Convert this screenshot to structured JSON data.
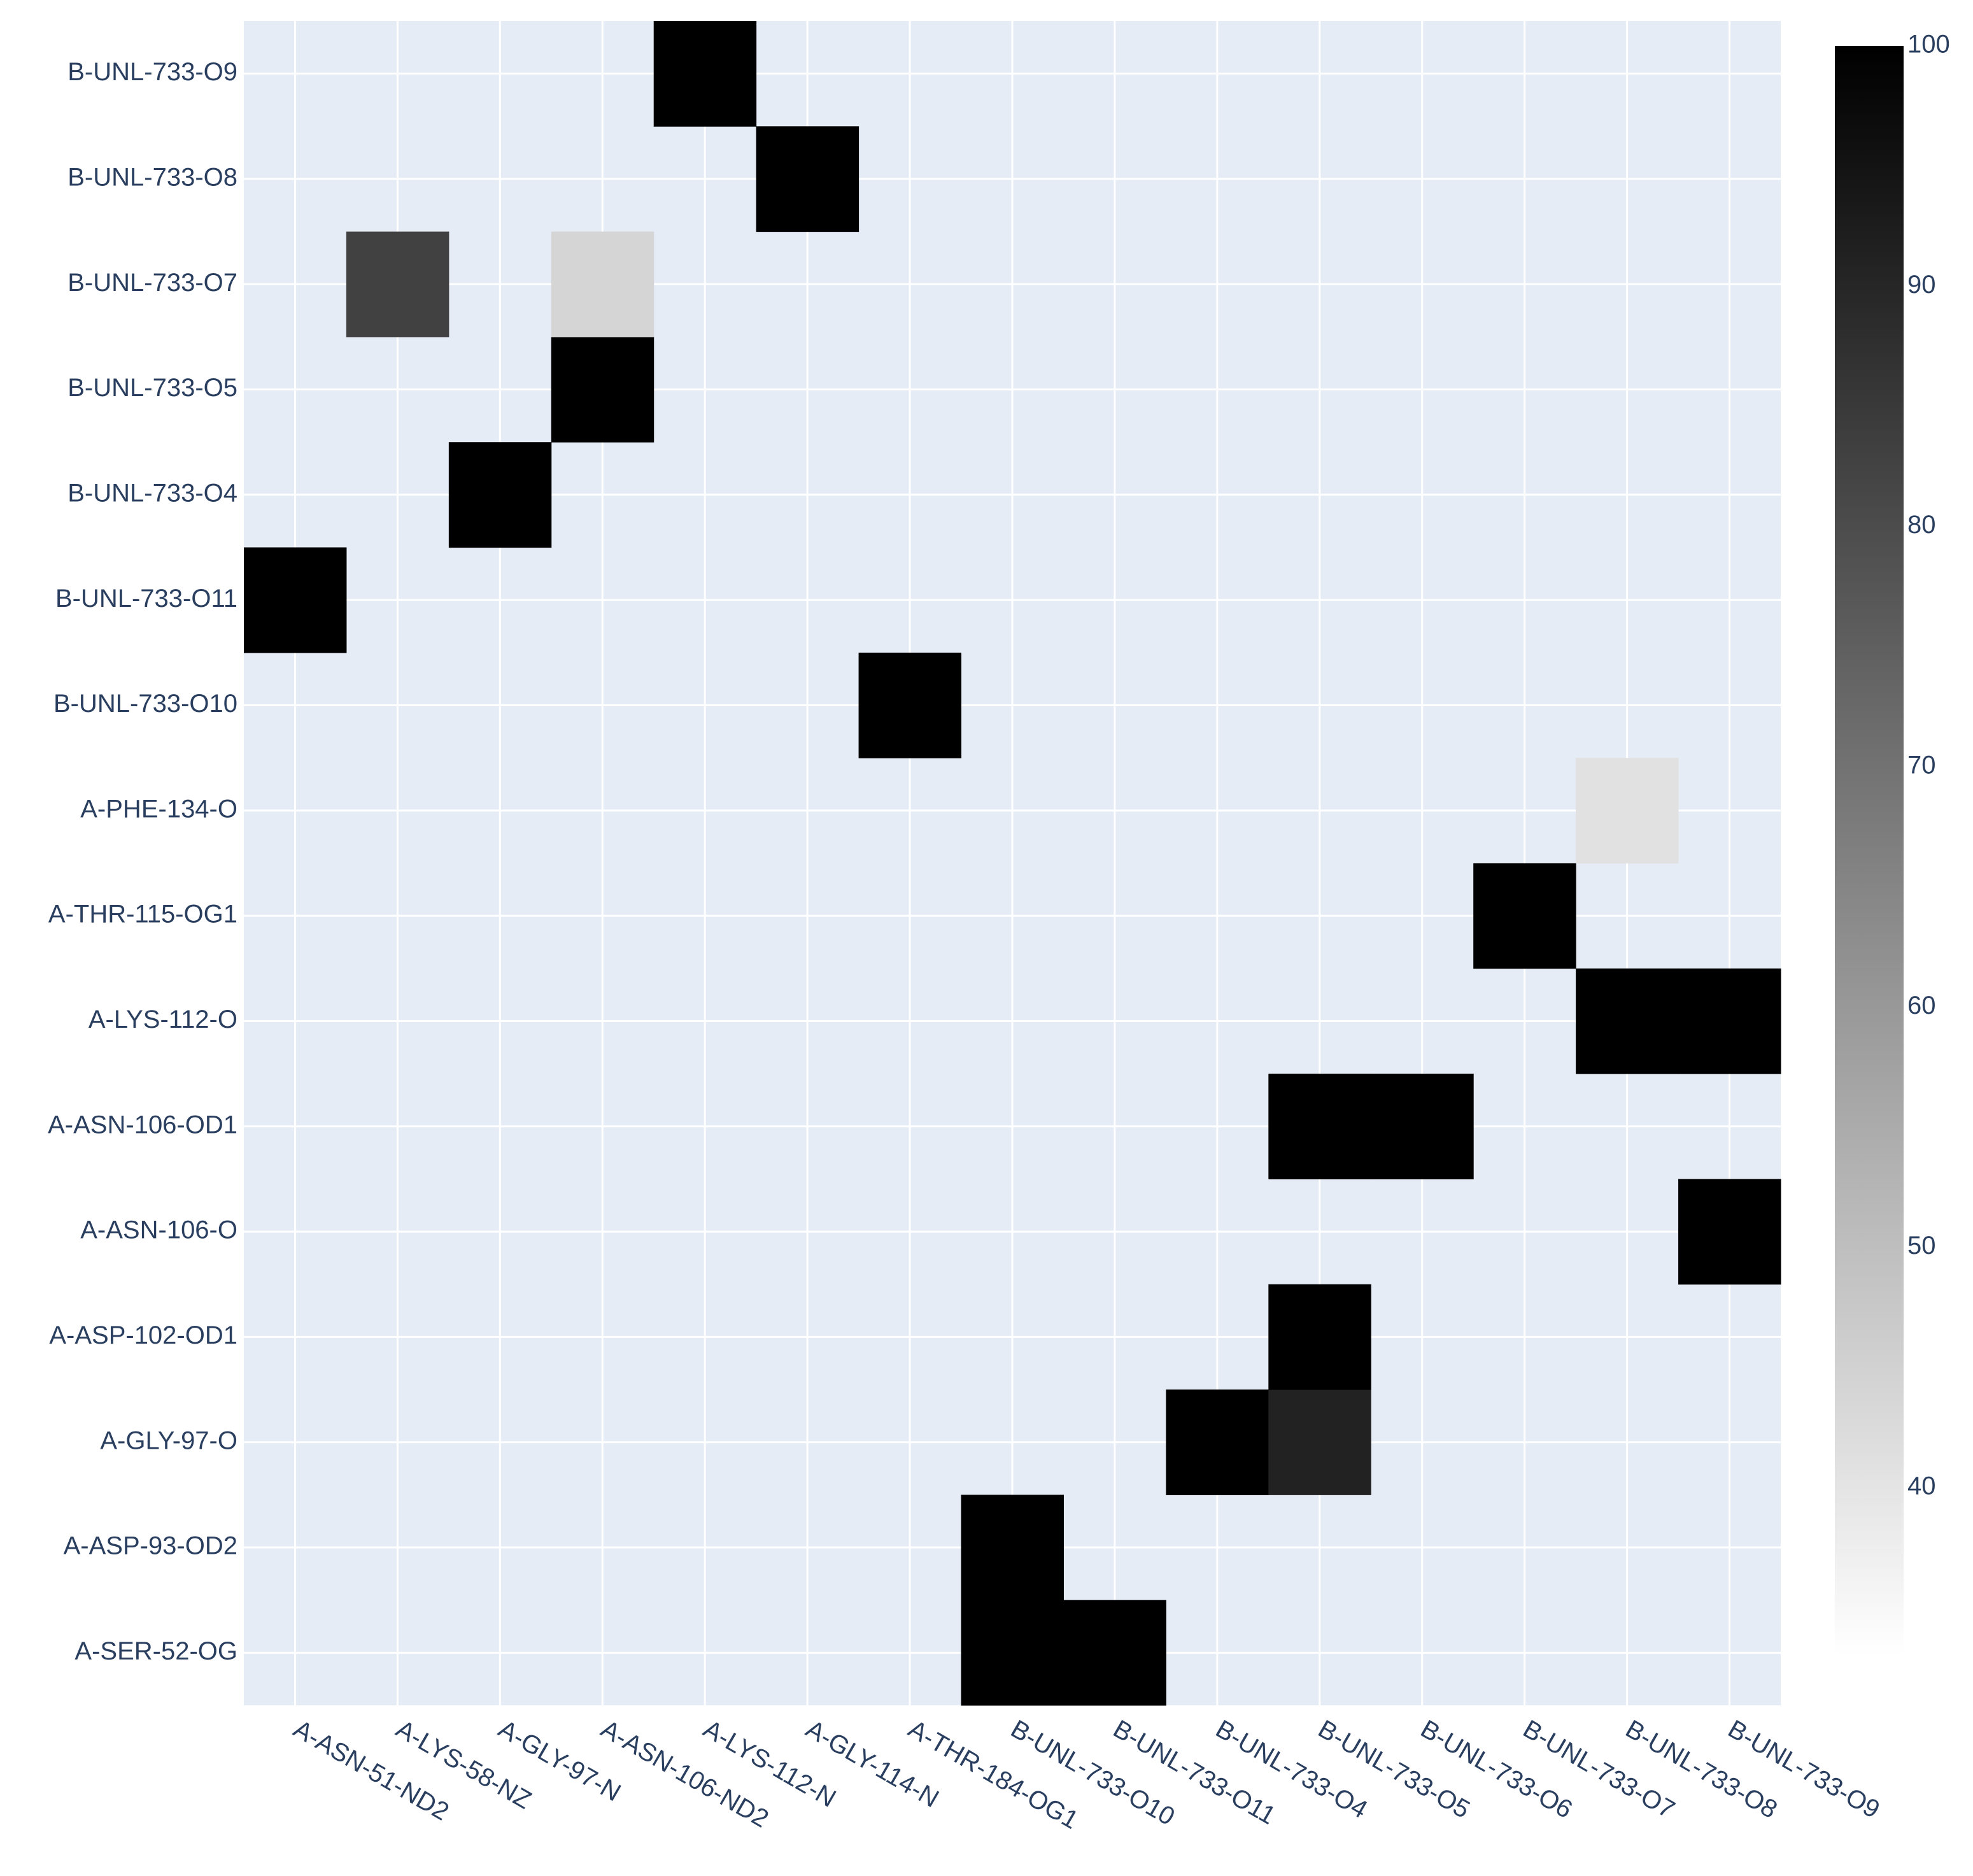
{
  "chart_data": {
    "type": "heatmap",
    "title": "",
    "xlabel": "",
    "ylabel": "",
    "x_categories": [
      "A-ASN-51-ND2",
      "A-LYS-58-NZ",
      "A-GLY-97-N",
      "A-ASN-106-ND2",
      "A-LYS-112-N",
      "A-GLY-114-N",
      "A-THR-184-OG1",
      "B-UNL-733-O10",
      "B-UNL-733-O11",
      "B-UNL-733-O4",
      "B-UNL-733-O5",
      "B-UNL-733-O6",
      "B-UNL-733-O7",
      "B-UNL-733-O8",
      "B-UNL-733-O9"
    ],
    "y_categories": [
      "A-SER-52-OG",
      "A-ASP-93-OD2",
      "A-GLY-97-O",
      "A-ASP-102-OD1",
      "A-ASN-106-O",
      "A-ASN-106-OD1",
      "A-LYS-112-O",
      "A-THR-115-OG1",
      "A-PHE-134-O",
      "B-UNL-733-O10",
      "B-UNL-733-O11",
      "B-UNL-733-O4",
      "B-UNL-733-O5",
      "B-UNL-733-O7",
      "B-UNL-733-O8",
      "B-UNL-733-O9"
    ],
    "cells": [
      {
        "x": "B-UNL-733-O10",
        "y": "A-SER-52-OG",
        "value": 100
      },
      {
        "x": "B-UNL-733-O11",
        "y": "A-SER-52-OG",
        "value": 100
      },
      {
        "x": "B-UNL-733-O10",
        "y": "A-ASP-93-OD2",
        "value": 100
      },
      {
        "x": "B-UNL-733-O4",
        "y": "A-GLY-97-O",
        "value": 100
      },
      {
        "x": "B-UNL-733-O5",
        "y": "A-GLY-97-O",
        "value": 91
      },
      {
        "x": "B-UNL-733-O5",
        "y": "A-ASP-102-OD1",
        "value": 100
      },
      {
        "x": "B-UNL-733-O9",
        "y": "A-ASN-106-O",
        "value": 100
      },
      {
        "x": "B-UNL-733-O5",
        "y": "A-ASN-106-OD1",
        "value": 100
      },
      {
        "x": "B-UNL-733-O6",
        "y": "A-ASN-106-OD1",
        "value": 100
      },
      {
        "x": "B-UNL-733-O8",
        "y": "A-LYS-112-O",
        "value": 100
      },
      {
        "x": "B-UNL-733-O9",
        "y": "A-LYS-112-O",
        "value": 100
      },
      {
        "x": "B-UNL-733-O7",
        "y": "A-THR-115-OG1",
        "value": 100
      },
      {
        "x": "B-UNL-733-O8",
        "y": "A-PHE-134-O",
        "value": 41
      },
      {
        "x": "A-THR-184-OG1",
        "y": "B-UNL-733-O10",
        "value": 100
      },
      {
        "x": "A-ASN-51-ND2",
        "y": "B-UNL-733-O11",
        "value": 100
      },
      {
        "x": "A-GLY-97-N",
        "y": "B-UNL-733-O4",
        "value": 100
      },
      {
        "x": "A-ASN-106-ND2",
        "y": "B-UNL-733-O5",
        "value": 100
      },
      {
        "x": "A-LYS-58-NZ",
        "y": "B-UNL-733-O7",
        "value": 83
      },
      {
        "x": "A-ASN-106-ND2",
        "y": "B-UNL-733-O7",
        "value": 44
      },
      {
        "x": "A-GLY-114-N",
        "y": "B-UNL-733-O8",
        "value": 100
      },
      {
        "x": "A-LYS-112-N",
        "y": "B-UNL-733-O9",
        "value": 100
      }
    ],
    "colorscale": [
      "#ffffff",
      "#000000"
    ],
    "zmin": 33,
    "zmax": 100,
    "colorbar_ticks": [
      40,
      50,
      60,
      70,
      80,
      90,
      100
    ],
    "grid": true,
    "legend": "colorbar-right",
    "plot_background": "#e5ecf6",
    "grid_color": "#ffffff",
    "tick_label_color": "#2a3f5f"
  }
}
